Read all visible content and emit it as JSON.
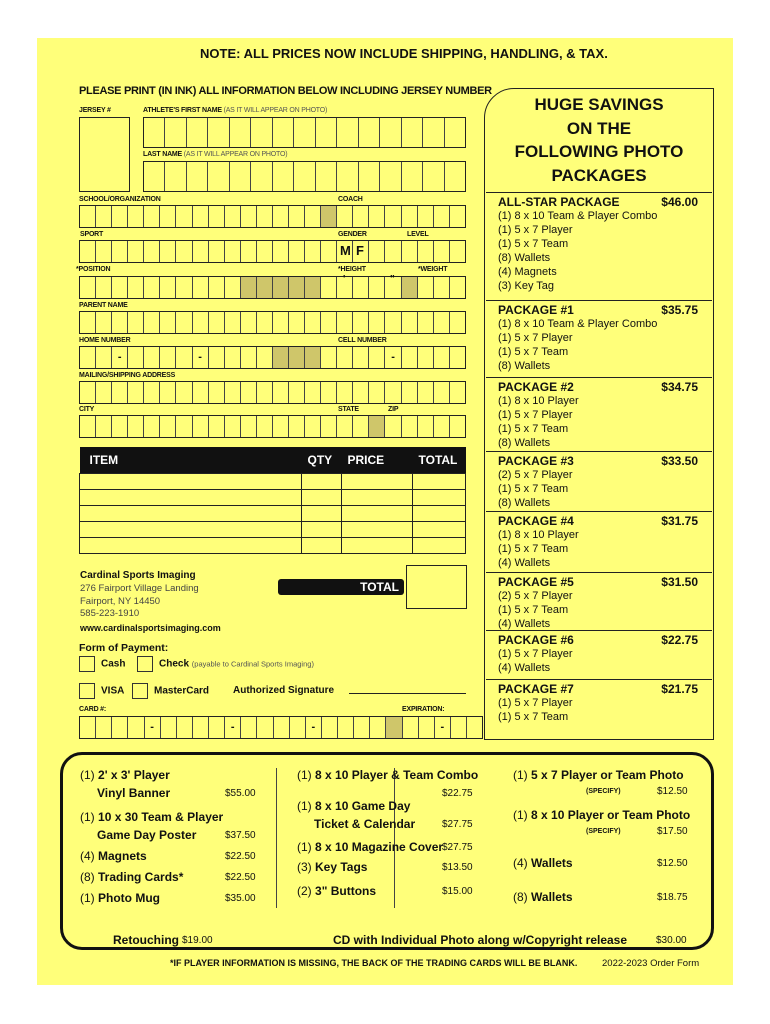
{
  "note": "NOTE: ALL PRICES NOW INCLUDE  SHIPPING, HANDLING, & TAX.",
  "instructions": "PLEASE PRINT (IN INK) ALL INFORMATION BELOW INCLUDING JERSEY NUMBER",
  "fields": {
    "jersey": "JERSEY #",
    "first_name": "ATHLETE'S FIRST NAME",
    "first_name_note": "(AS IT WILL APPEAR ON PHOTO)",
    "last_name": "LAST NAME",
    "last_name_note": "(AS IT WILL APPEAR ON PHOTO)",
    "school": "SCHOOL/ORGANIZATION",
    "coach": "COACH",
    "sport": "SPORT",
    "gender": "GENDER",
    "level": "LEVEL",
    "gender_m": "M",
    "gender_f": "F",
    "position": "*POSITION",
    "height": "*HEIGHT",
    "weight": "*WEIGHT",
    "feet": "'",
    "inches": "\"",
    "parent": "PARENT NAME",
    "home": "HOME NUMBER",
    "cell": "CELL NUMBER",
    "dash": "-",
    "mailing": "MAILING/SHIPPING ADDRESS",
    "city": "CITY",
    "state": "STATE",
    "zip": "ZIP"
  },
  "order_table": {
    "headers": [
      "ITEM",
      "QTY",
      "PRICE",
      "TOTAL"
    ],
    "total_label": "TOTAL"
  },
  "company": {
    "name": "Cardinal Sports Imaging",
    "address1": "276 Fairport Village Landing",
    "address2": "Fairport, NY 14450",
    "phone": "585-223-1910",
    "website": "www.cardinalsportsimaging.com"
  },
  "payment": {
    "title": "Form of Payment:",
    "cash": "Cash",
    "check": "Check",
    "check_note": "(payable to Cardinal Sports Imaging)",
    "visa": "VISA",
    "mastercard": "MasterCard",
    "signature": "Authorized Signature",
    "card": "CARD #:",
    "expiration": "EXPIRATION:"
  },
  "packages_header": [
    "HUGE SAVINGS",
    "ON THE",
    "FOLLOWING PHOTO",
    "PACKAGES"
  ],
  "packages": [
    {
      "name": "ALL-STAR PACKAGE",
      "price": "$46.00",
      "items": [
        "(1) 8 x 10 Team & Player Combo",
        "(1) 5 x 7 Player",
        "(1) 5 x 7 Team",
        "(8) Wallets",
        "(4) Magnets",
        "(3) Key Tag"
      ]
    },
    {
      "name": "PACKAGE #1",
      "price": "$35.75",
      "items": [
        "(1) 8 x 10 Team & Player Combo",
        "(1) 5 x 7 Player",
        "(1) 5 x 7 Team",
        "(8) Wallets"
      ]
    },
    {
      "name": "PACKAGE #2",
      "price": "$34.75",
      "items": [
        "(1) 8 x 10 Player",
        "(1) 5 x 7 Player",
        "(1) 5 x 7 Team",
        "(8) Wallets"
      ]
    },
    {
      "name": "PACKAGE #3",
      "price": "$33.50",
      "items": [
        "(2) 5 x 7 Player",
        "(1) 5 x 7 Team",
        "(8) Wallets"
      ]
    },
    {
      "name": "PACKAGE #4",
      "price": "$31.75",
      "items": [
        "(1) 8 x 10 Player",
        "(1) 5 x 7 Team",
        "(4) Wallets"
      ]
    },
    {
      "name": "PACKAGE #5",
      "price": "$31.50",
      "items": [
        "(2) 5 x 7 Player",
        "(1) 5 x 7 Team",
        "(4) Wallets"
      ]
    },
    {
      "name": "PACKAGE #6",
      "price": "$22.75",
      "items": [
        "(1) 5 x 7 Player",
        "(4) Wallets"
      ]
    },
    {
      "name": "PACKAGE #7",
      "price": "$21.75",
      "items": [
        "(1) 5 x 7 Player",
        "(1) 5 x 7 Team"
      ]
    }
  ],
  "extras": {
    "col1": [
      {
        "qty": "(1)",
        "name": "2' x 3' Player",
        "name2": "Vinyl Banner",
        "price": "$55.00"
      },
      {
        "qty": "(1)",
        "name": "10 x 30 Team & Player",
        "name2": "Game Day Poster",
        "price": "$37.50"
      },
      {
        "qty": "(4)",
        "name": "Magnets",
        "price": "$22.50"
      },
      {
        "qty": "(8)",
        "name": "Trading Cards*",
        "price": "$22.50"
      },
      {
        "qty": "(1)",
        "name": "Photo Mug",
        "price": "$35.00"
      }
    ],
    "col2": [
      {
        "qty": "(1)",
        "name": "8 x 10 Player & Team Combo",
        "price": "$22.75"
      },
      {
        "qty": "(1)",
        "name": "8 x 10  Game Day",
        "name2": "Ticket & Calendar",
        "price": "$27.75"
      },
      {
        "qty": "(1)",
        "name": "8 x 10 Magazine Cover",
        "price": "$27.75"
      },
      {
        "qty": "(3)",
        "name": "Key Tags",
        "price": "$13.50"
      },
      {
        "qty": "(2)",
        "name": "3\" Buttons",
        "price": "$15.00"
      }
    ],
    "col3": [
      {
        "qty": "(1)",
        "name": "5 x 7 Player or Team Photo",
        "note": "(SPECIFY)",
        "price": "$12.50"
      },
      {
        "qty": "(1)",
        "name": "8 x 10 Player or Team Photo",
        "note": "(SPECIFY)",
        "price": "$17.50"
      },
      {
        "qty": "(4)",
        "name": "Wallets",
        "price": "$12.50"
      },
      {
        "qty": "(8)",
        "name": "Wallets",
        "price": "$18.75"
      }
    ],
    "retouching": "Retouching",
    "retouching_price": "$19.00",
    "cd": "CD with Individual Photo along w/Copyright release",
    "cd_price": "$30.00"
  },
  "footer": {
    "disclaimer": "*IF PLAYER INFORMATION IS MISSING, THE BACK OF THE TRADING CARDS WILL BE BLANK.",
    "form_year": "2022-2023 Order Form"
  },
  "colors": {
    "paper": "#ffff7a",
    "ink": "#111111",
    "shaded_cell": "#cfc66a"
  }
}
